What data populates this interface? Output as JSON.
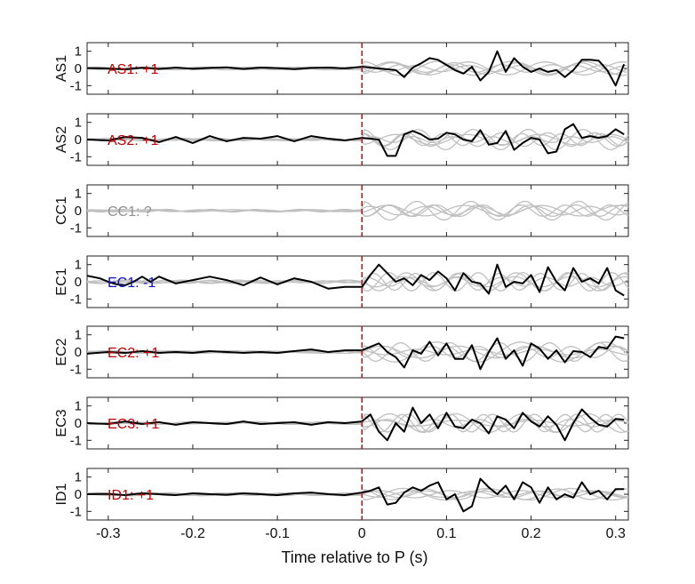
{
  "chart_data": {
    "type": "line",
    "xlabel": "Time relative to P (s)",
    "xlim": [
      -0.325,
      0.315
    ],
    "ylim": [
      -1.5,
      1.5
    ],
    "xticks": [
      -0.3,
      -0.2,
      -0.1,
      0,
      0.1,
      0.2,
      0.3
    ],
    "xtick_labels": [
      "-0.3",
      "-0.2",
      "-0.1",
      "0",
      "0.1",
      "0.2",
      "0.3"
    ],
    "yticks": [
      1,
      0,
      -1
    ],
    "ytick_labels": [
      "1",
      "0",
      "-1"
    ],
    "onset_marker_x": 0,
    "colors": {
      "positive": "#c00000",
      "negative": "#1010c0",
      "unknown": "#909090",
      "trace": "#000000",
      "background_traces": "#c0c0c0",
      "onset": "#e00000"
    },
    "panels": [
      {
        "ylabel": "AS1",
        "annotation": "AS1: +1",
        "polarity": "positive",
        "x": [
          -0.325,
          -0.3,
          -0.28,
          -0.26,
          -0.24,
          -0.22,
          -0.2,
          -0.18,
          -0.16,
          -0.14,
          -0.12,
          -0.1,
          -0.08,
          -0.06,
          -0.04,
          -0.02,
          0,
          0.02,
          0.04,
          0.05,
          0.06,
          0.07,
          0.08,
          0.09,
          0.1,
          0.11,
          0.12,
          0.13,
          0.14,
          0.15,
          0.16,
          0.17,
          0.18,
          0.19,
          0.2,
          0.21,
          0.22,
          0.23,
          0.24,
          0.25,
          0.26,
          0.27,
          0.28,
          0.29,
          0.3,
          0.31
        ],
        "values": [
          0.02,
          0.0,
          -0.05,
          0.04,
          -0.03,
          0.05,
          -0.02,
          0.03,
          0.06,
          -0.03,
          0.05,
          0.02,
          -0.04,
          0.03,
          0.05,
          0.0,
          0.1,
          0.0,
          -0.1,
          -0.5,
          0.05,
          0.3,
          0.6,
          0.5,
          0.2,
          -0.1,
          -0.3,
          0.1,
          -0.7,
          -0.2,
          1.0,
          -0.2,
          0.6,
          0.1,
          -0.2,
          0.0,
          -0.2,
          -0.1,
          -0.5,
          -0.1,
          0.5,
          0.5,
          0.45,
          -0.1,
          -1.0,
          0.25
        ]
      },
      {
        "ylabel": "AS2",
        "annotation": "AS2: +1",
        "polarity": "positive",
        "x": [
          -0.325,
          -0.3,
          -0.28,
          -0.26,
          -0.24,
          -0.22,
          -0.2,
          -0.18,
          -0.16,
          -0.14,
          -0.12,
          -0.1,
          -0.08,
          -0.06,
          -0.04,
          -0.02,
          0,
          0.02,
          0.03,
          0.04,
          0.05,
          0.06,
          0.07,
          0.08,
          0.09,
          0.1,
          0.11,
          0.12,
          0.13,
          0.14,
          0.15,
          0.16,
          0.17,
          0.18,
          0.19,
          0.2,
          0.21,
          0.22,
          0.23,
          0.24,
          0.25,
          0.26,
          0.27,
          0.28,
          0.29,
          0.3,
          0.31
        ],
        "values": [
          0.0,
          -0.05,
          0.15,
          0.1,
          -0.15,
          0.15,
          -0.2,
          0.2,
          -0.1,
          0.1,
          0.05,
          0.2,
          -0.1,
          0.2,
          0.05,
          -0.05,
          0.1,
          0.0,
          -0.95,
          -0.95,
          0.3,
          0.5,
          0.3,
          0.0,
          0.05,
          0.4,
          0.3,
          0.0,
          -0.1,
          0.55,
          -0.3,
          -0.2,
          0.5,
          -0.6,
          -0.2,
          0.1,
          0.0,
          -0.8,
          -0.7,
          0.6,
          0.9,
          0.1,
          0.2,
          0.1,
          0.2,
          0.6,
          0.3
        ]
      },
      {
        "ylabel": "CC1",
        "annotation": "CC1: ?",
        "polarity": "unknown",
        "x": [],
        "values": []
      },
      {
        "ylabel": "EC1",
        "annotation": "EC1: -1",
        "polarity": "negative",
        "x": [
          -0.325,
          -0.31,
          -0.3,
          -0.29,
          -0.28,
          -0.27,
          -0.26,
          -0.25,
          -0.24,
          -0.22,
          -0.2,
          -0.18,
          -0.16,
          -0.14,
          -0.12,
          -0.1,
          -0.08,
          -0.06,
          -0.04,
          -0.02,
          0,
          0.01,
          0.02,
          0.03,
          0.04,
          0.05,
          0.06,
          0.07,
          0.08,
          0.09,
          0.1,
          0.11,
          0.12,
          0.13,
          0.14,
          0.15,
          0.16,
          0.17,
          0.18,
          0.19,
          0.2,
          0.21,
          0.22,
          0.23,
          0.24,
          0.25,
          0.26,
          0.27,
          0.28,
          0.29,
          0.3,
          0.31
        ],
        "values": [
          0.35,
          0.2,
          0.0,
          -0.15,
          -0.2,
          0.0,
          0.3,
          0.0,
          0.3,
          -0.1,
          0.1,
          0.3,
          0.1,
          -0.2,
          0.25,
          -0.15,
          0.2,
          0.0,
          -0.4,
          -0.3,
          -0.3,
          0.4,
          1.0,
          0.5,
          0.0,
          0.2,
          -0.2,
          0.4,
          0.1,
          0.6,
          0.2,
          -0.5,
          0.5,
          0.0,
          -0.1,
          -0.7,
          1.0,
          -0.3,
          0.0,
          -0.1,
          0.4,
          -0.6,
          0.85,
          0.0,
          -0.5,
          0.8,
          0.0,
          0.2,
          -0.1,
          0.8,
          -0.5,
          -0.8
        ]
      },
      {
        "ylabel": "EC2",
        "annotation": "EC2: +1",
        "polarity": "positive",
        "x": [
          -0.325,
          -0.3,
          -0.28,
          -0.26,
          -0.24,
          -0.22,
          -0.2,
          -0.18,
          -0.16,
          -0.14,
          -0.12,
          -0.1,
          -0.08,
          -0.06,
          -0.04,
          -0.02,
          0,
          0.01,
          0.02,
          0.03,
          0.04,
          0.05,
          0.06,
          0.07,
          0.08,
          0.09,
          0.1,
          0.11,
          0.12,
          0.13,
          0.14,
          0.15,
          0.16,
          0.17,
          0.18,
          0.19,
          0.2,
          0.21,
          0.22,
          0.23,
          0.24,
          0.25,
          0.26,
          0.27,
          0.28,
          0.29,
          0.3,
          0.31
        ],
        "values": [
          -0.1,
          0.0,
          -0.05,
          0.05,
          -0.05,
          0.0,
          -0.05,
          0.05,
          0.0,
          -0.05,
          0.0,
          -0.05,
          0.05,
          0.15,
          0.0,
          0.1,
          0.1,
          0.3,
          0.5,
          0.0,
          -0.3,
          -0.9,
          0.1,
          -0.1,
          0.6,
          -0.2,
          0.5,
          -0.4,
          -0.4,
          0.4,
          -1.0,
          0.0,
          0.8,
          -0.4,
          0.1,
          -0.8,
          0.5,
          0.2,
          -0.4,
          0.1,
          -0.6,
          0.05,
          0.0,
          -0.3,
          0.3,
          0.2,
          0.9,
          0.8
        ]
      },
      {
        "ylabel": "EC3",
        "annotation": "EC3: +1",
        "polarity": "positive",
        "x": [
          -0.325,
          -0.3,
          -0.28,
          -0.26,
          -0.24,
          -0.22,
          -0.2,
          -0.18,
          -0.16,
          -0.14,
          -0.12,
          -0.1,
          -0.08,
          -0.06,
          -0.04,
          -0.02,
          0,
          0.01,
          0.02,
          0.03,
          0.04,
          0.05,
          0.06,
          0.07,
          0.08,
          0.09,
          0.1,
          0.11,
          0.12,
          0.13,
          0.14,
          0.15,
          0.16,
          0.17,
          0.18,
          0.19,
          0.2,
          0.21,
          0.22,
          0.23,
          0.24,
          0.25,
          0.26,
          0.27,
          0.28,
          0.29,
          0.3,
          0.31
        ],
        "values": [
          0.0,
          -0.05,
          0.1,
          -0.05,
          0.05,
          -0.1,
          0.05,
          0.0,
          -0.05,
          0.1,
          -0.05,
          0.0,
          0.05,
          -0.1,
          0.05,
          0.0,
          0.1,
          0.5,
          -0.5,
          -1.0,
          0.0,
          -0.5,
          0.9,
          0.0,
          0.5,
          -0.3,
          0.6,
          -0.2,
          -0.3,
          0.2,
          0.0,
          -0.6,
          0.4,
          0.2,
          -0.3,
          0.6,
          0.1,
          -0.2,
          0.4,
          -0.1,
          -1.0,
          0.0,
          0.8,
          0.3,
          -0.1,
          -0.2,
          0.25,
          0.2
        ]
      },
      {
        "ylabel": "ID1",
        "annotation": "ID1: +1",
        "polarity": "positive",
        "x": [
          -0.325,
          -0.3,
          -0.28,
          -0.26,
          -0.24,
          -0.22,
          -0.2,
          -0.18,
          -0.16,
          -0.14,
          -0.12,
          -0.1,
          -0.08,
          -0.06,
          -0.04,
          -0.02,
          0,
          0.01,
          0.02,
          0.03,
          0.04,
          0.05,
          0.06,
          0.07,
          0.08,
          0.09,
          0.1,
          0.11,
          0.12,
          0.13,
          0.14,
          0.15,
          0.16,
          0.17,
          0.18,
          0.19,
          0.2,
          0.21,
          0.22,
          0.23,
          0.24,
          0.25,
          0.26,
          0.27,
          0.28,
          0.29,
          0.3,
          0.31
        ],
        "values": [
          0.0,
          0.02,
          -0.05,
          0.05,
          0.0,
          -0.05,
          0.05,
          0.0,
          -0.03,
          0.05,
          0.0,
          -0.05,
          0.05,
          0.1,
          0.0,
          -0.05,
          0.1,
          0.2,
          0.4,
          -0.6,
          -0.5,
          0.1,
          0.4,
          0.2,
          0.5,
          0.7,
          -0.3,
          0.0,
          -1.0,
          -0.7,
          0.9,
          0.4,
          0.0,
          0.5,
          -0.3,
          0.7,
          0.4,
          -0.5,
          0.4,
          -0.3,
          0.0,
          -0.2,
          0.7,
          0.0,
          0.2,
          -0.3,
          0.3,
          0.3
        ]
      }
    ]
  }
}
